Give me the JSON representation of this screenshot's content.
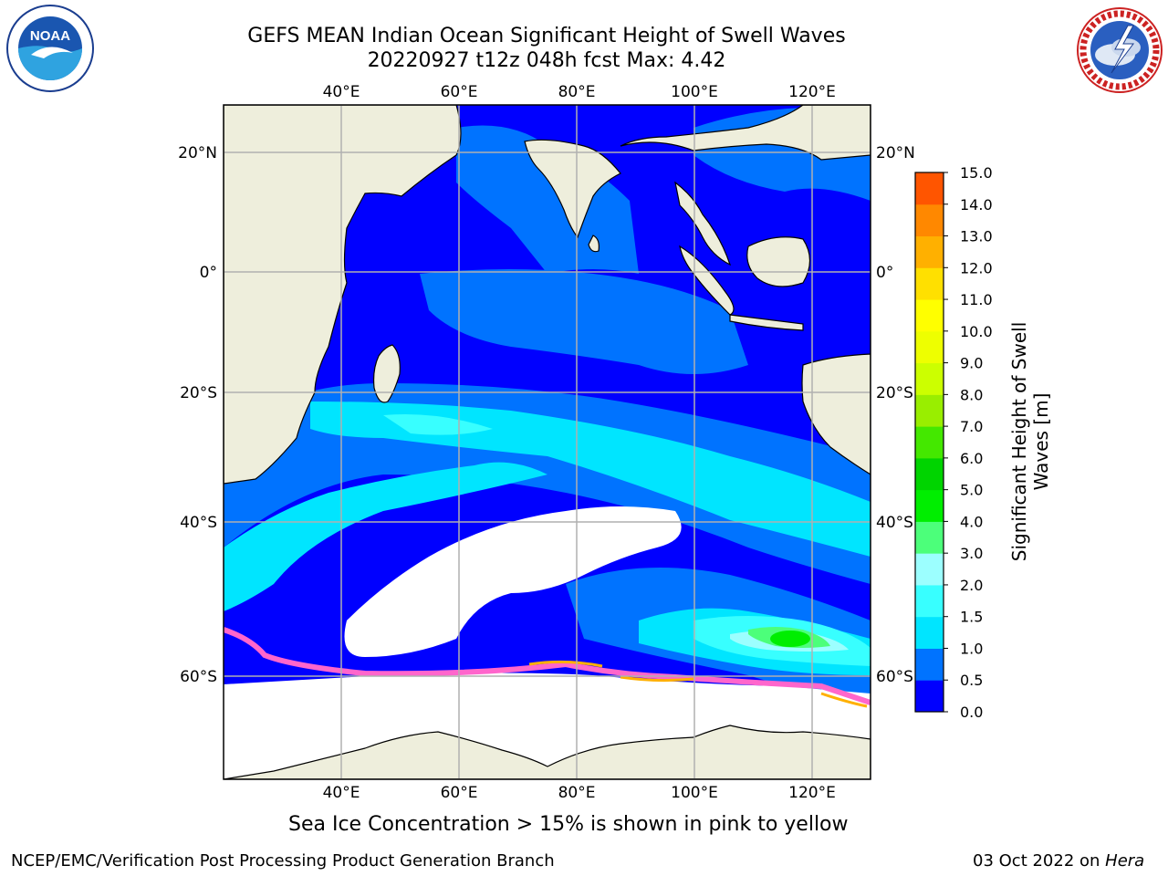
{
  "header": {
    "title_line1": "GEFS MEAN Indian Ocean Significant Height of Swell Waves",
    "title_line2": "20220927 t12z 048h fcst   Max: 4.42"
  },
  "logos": {
    "left": {
      "icon": "noaa-logo-icon",
      "text": "NOAA"
    },
    "right": {
      "icon": "nws-logo-icon",
      "ring_text": "NATIONAL WEATHER SERVICE"
    }
  },
  "map": {
    "longitude_labels": [
      "40°E",
      "60°E",
      "80°E",
      "100°E",
      "120°E"
    ],
    "latitude_labels": [
      "20°N",
      "0°",
      "20°S",
      "40°S",
      "60°S"
    ],
    "colors": {
      "land": "#eeeedc",
      "ice": "#ffffff",
      "frame": "#000000",
      "grid": "#b0b0b0"
    }
  },
  "colorbar": {
    "label_line1": "Significant Height of Swell",
    "label_line2": "Waves [m]",
    "ticks": [
      "15.0",
      "14.0",
      "13.0",
      "12.0",
      "11.0",
      "10.0",
      "9.0",
      "8.0",
      "7.0",
      "6.0",
      "5.0",
      "4.0",
      "3.0",
      "2.0",
      "1.5",
      "1.0",
      "0.5",
      "0.0"
    ],
    "colors": [
      "#0000ff",
      "#0073ff",
      "#00e5ff",
      "#38ffff",
      "#9cffff",
      "#4cff7a",
      "#00ee00",
      "#00d400",
      "#44e800",
      "#99ee00",
      "#ccff00",
      "#eeff00",
      "#ffff00",
      "#ffe000",
      "#ffb000",
      "#ff8800",
      "#ff5500",
      "#ff2a00",
      "#ff0000"
    ]
  },
  "caption": "Sea Ice Concentration > 15% is shown in pink to yellow",
  "footer": {
    "left": "NCEP/EMC/Verification Post Processing Product Generation Branch",
    "right_prefix": "03 Oct 2022 on ",
    "right_machine": "Hera"
  }
}
